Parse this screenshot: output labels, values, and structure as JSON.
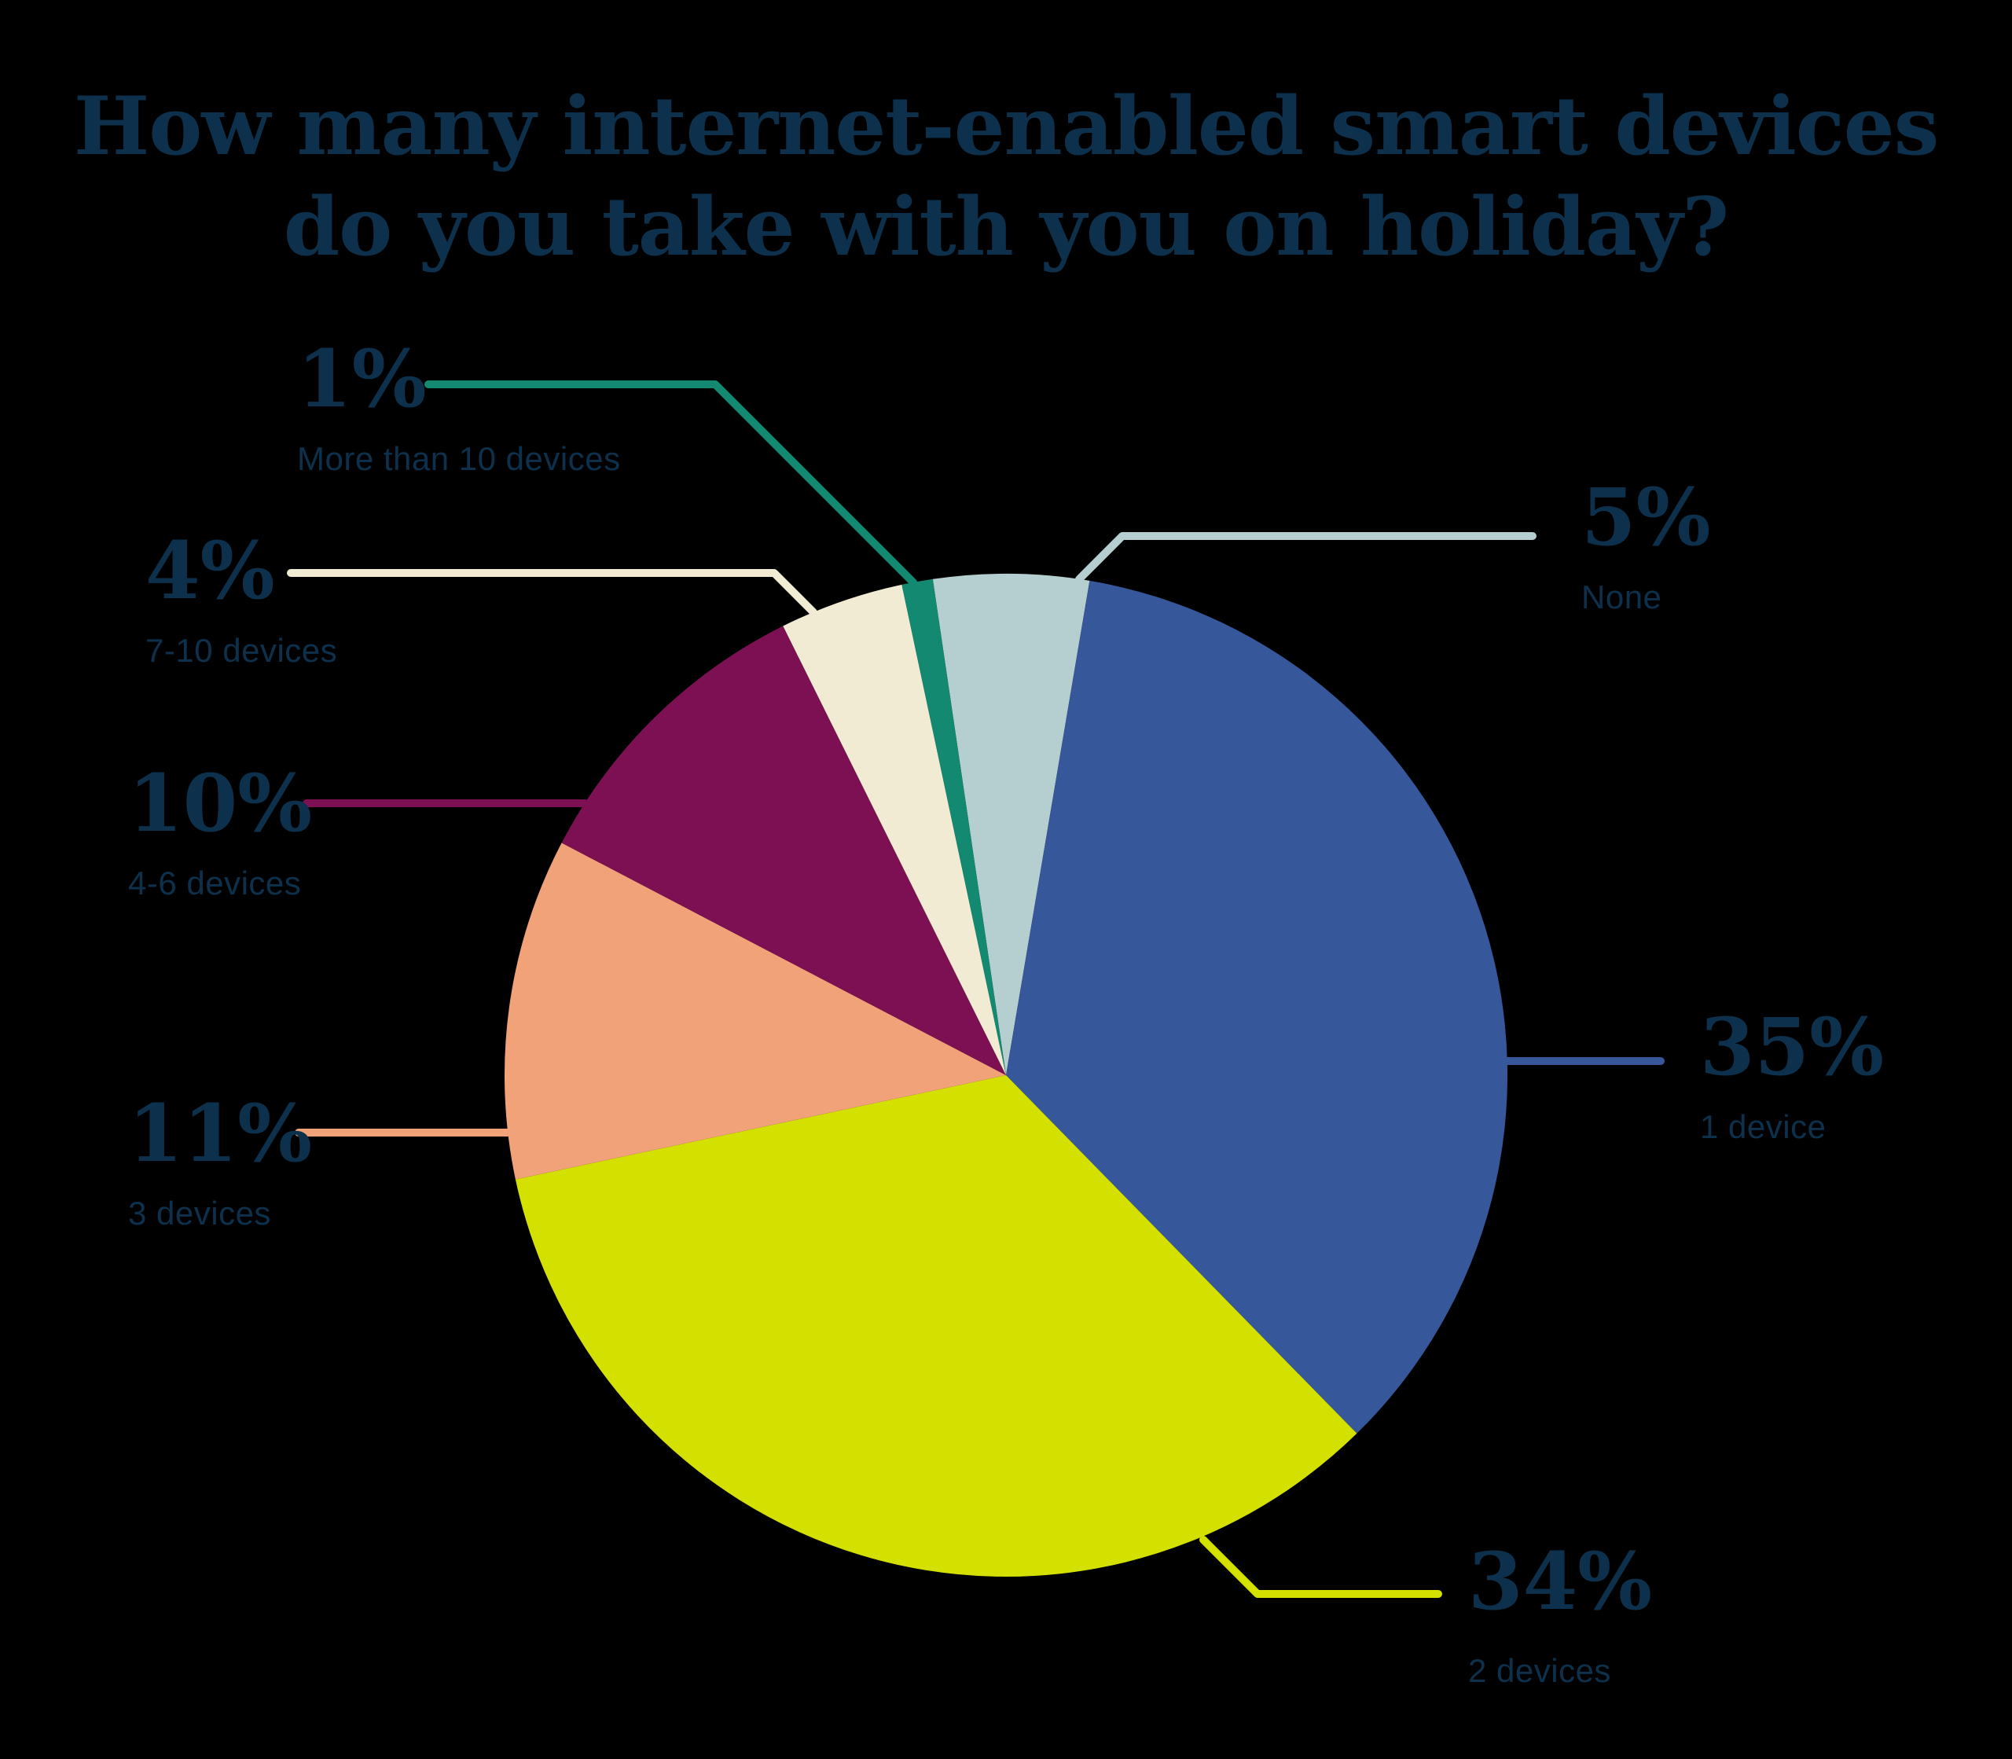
{
  "title": {
    "line1": "How many internet-enabled smart devices",
    "line2": "do you take with you on holiday?"
  },
  "colors": {
    "background": "#000000",
    "text": "#0d314c"
  },
  "chart_data": {
    "type": "pie",
    "title": "How many internet-enabled smart devices do you take with you on holiday?",
    "direction": "clockwise",
    "start_angle_deg": -8.4,
    "slices": [
      {
        "id": "none",
        "label": "None",
        "pct_label": "5%",
        "value": 5,
        "color": "#b5cfd1"
      },
      {
        "id": "1-device",
        "label": "1 device",
        "pct_label": "35%",
        "value": 35,
        "color": "#36589b"
      },
      {
        "id": "2-devices",
        "label": "2 devices",
        "pct_label": "34%",
        "value": 34,
        "color": "#d4e100"
      },
      {
        "id": "3-devices",
        "label": "3 devices",
        "pct_label": "11%",
        "value": 11,
        "color": "#f2a278"
      },
      {
        "id": "4-6-devices",
        "label": "4-6 devices",
        "pct_label": "10%",
        "value": 10,
        "color": "#7d1053"
      },
      {
        "id": "7-10-devices",
        "label": "7-10 devices",
        "pct_label": "4%",
        "value": 4,
        "color": "#f0ebd2"
      },
      {
        "id": "more-than-10-devices",
        "label": "More than 10 devices",
        "pct_label": "1%",
        "value": 1,
        "color": "#128970"
      }
    ]
  }
}
